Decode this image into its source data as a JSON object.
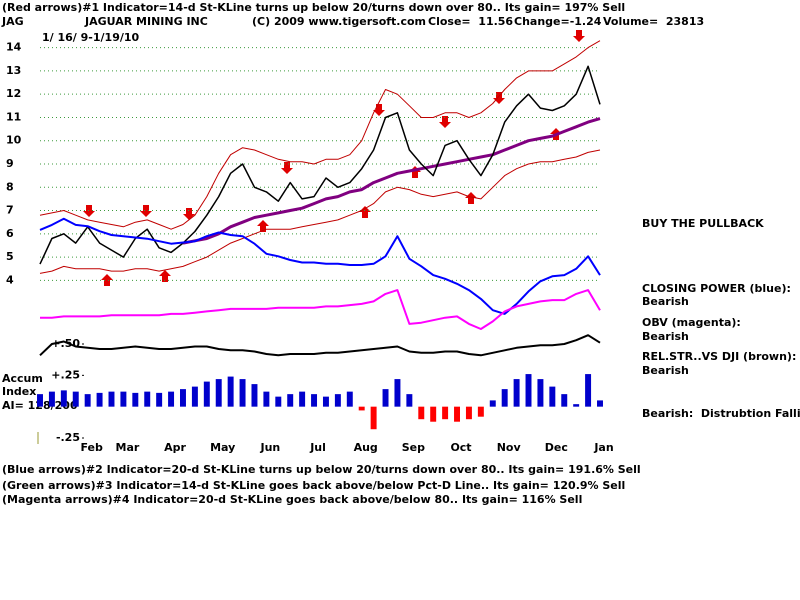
{
  "header": {
    "signal": "(Red arrows)#1 Indicator=14-d St-KLine turns up below 20/turns down over 80.. Its gain= 197% Sell",
    "ticker": "JAG",
    "company": "JAGUAR MINING INC",
    "copyright": "(C) 2009 www.tigersoft.com",
    "close": "Close=  11.56",
    "change": "Change=-1.24",
    "volume": "Volume=  23813",
    "dates": "1/ 16/ 9-1/19/10"
  },
  "chart_data": {
    "type": "line",
    "categories": [
      null,
      null,
      null,
      null,
      "Feb",
      null,
      null,
      "Mar",
      null,
      null,
      null,
      "Apr",
      null,
      null,
      null,
      "May",
      null,
      null,
      null,
      "Jun",
      null,
      null,
      null,
      "Jul",
      null,
      null,
      null,
      "Aug",
      null,
      null,
      null,
      "Sep",
      null,
      null,
      null,
      "Oct",
      null,
      null,
      null,
      "Nov",
      null,
      null,
      null,
      "Dec",
      null,
      null,
      null,
      "Jan"
    ],
    "ylim": [
      3.5,
      14.5
    ],
    "yticks": [
      4,
      5,
      6,
      7,
      8,
      9,
      10,
      11,
      12,
      13,
      14
    ],
    "y2lim": [
      -0.25,
      2.0
    ],
    "y2ticks": [
      {
        "value": 0.5,
        "label": "+.50"
      },
      {
        "value": 0.25,
        "label": "+.25"
      },
      {
        "value": -0.25,
        "label": "-.25"
      }
    ],
    "grid": true,
    "grid_color": "#3c9a3c",
    "series": [
      {
        "kind": "line",
        "color": "#c00000",
        "width": 1,
        "values": [
          6.8,
          6.9,
          7.0,
          6.8,
          6.6,
          6.5,
          6.4,
          6.3,
          6.5,
          6.6,
          6.4,
          6.2,
          6.4,
          6.8,
          7.6,
          8.6,
          9.4,
          9.7,
          9.6,
          9.4,
          9.2,
          9.1,
          9.1,
          9.0,
          9.2,
          9.2,
          9.4,
          10.0,
          11.2,
          12.2,
          12.0,
          11.5,
          11.0,
          11.0,
          11.2,
          11.2,
          11.0,
          11.2,
          11.6,
          12.2,
          12.7,
          13.0,
          13.0,
          13.0,
          13.3,
          13.6,
          14.0,
          14.3
        ]
      },
      {
        "kind": "line",
        "color": "#c00000",
        "width": 1,
        "values": [
          4.3,
          4.4,
          4.6,
          4.5,
          4.5,
          4.5,
          4.4,
          4.4,
          4.5,
          4.5,
          4.4,
          4.5,
          4.6,
          4.8,
          5.0,
          5.3,
          5.6,
          5.8,
          6.0,
          6.2,
          6.2,
          6.2,
          6.3,
          6.4,
          6.5,
          6.6,
          6.8,
          7.0,
          7.3,
          7.8,
          8.0,
          7.9,
          7.7,
          7.6,
          7.7,
          7.8,
          7.6,
          7.5,
          8.0,
          8.5,
          8.8,
          9.0,
          9.1,
          9.1,
          9.2,
          9.3,
          9.5,
          9.6
        ]
      },
      {
        "kind": "line",
        "color": "#800080",
        "width": 3,
        "values": [
          null,
          null,
          null,
          null,
          null,
          null,
          null,
          null,
          null,
          null,
          null,
          null,
          5.6,
          5.7,
          5.8,
          6.0,
          6.3,
          6.5,
          6.7,
          6.8,
          6.9,
          7.0,
          7.1,
          7.3,
          7.5,
          7.6,
          7.8,
          7.9,
          8.2,
          8.4,
          8.6,
          8.7,
          8.8,
          8.9,
          9.0,
          9.1,
          9.2,
          9.3,
          9.4,
          9.6,
          9.8,
          10.0,
          10.1,
          10.2,
          10.4,
          10.6,
          10.8,
          10.95
        ]
      },
      {
        "kind": "line",
        "color": "#000000",
        "width": 1.5,
        "values": [
          4.7,
          5.8,
          6.0,
          5.6,
          6.3,
          5.6,
          5.3,
          5.0,
          5.8,
          6.2,
          5.4,
          5.2,
          5.6,
          6.1,
          6.8,
          7.6,
          8.6,
          9.0,
          8.0,
          7.8,
          7.4,
          8.2,
          7.5,
          7.6,
          8.4,
          8.0,
          8.2,
          8.8,
          9.6,
          11.0,
          11.2,
          9.6,
          9.0,
          8.5,
          9.8,
          10.0,
          9.2,
          8.5,
          9.4,
          10.8,
          11.5,
          12.0,
          11.4,
          11.3,
          11.5,
          12.0,
          13.2,
          11.56
        ]
      },
      {
        "kind": "line",
        "axis": "y2",
        "color": "#0000ff",
        "width": 2,
        "values": [
          1.41,
          1.45,
          1.5,
          1.45,
          1.44,
          1.4,
          1.37,
          1.36,
          1.35,
          1.34,
          1.32,
          1.3,
          1.31,
          1.32,
          1.36,
          1.39,
          1.37,
          1.36,
          1.3,
          1.22,
          1.2,
          1.17,
          1.15,
          1.15,
          1.14,
          1.14,
          1.13,
          1.13,
          1.14,
          1.2,
          1.36,
          1.18,
          1.12,
          1.05,
          1.02,
          0.98,
          0.93,
          0.86,
          0.77,
          0.74,
          0.82,
          0.92,
          1.0,
          1.04,
          1.05,
          1.1,
          1.2,
          1.05
        ]
      },
      {
        "kind": "line",
        "axis": "y2",
        "color": "#ff00ff",
        "width": 2,
        "values": [
          0.71,
          0.71,
          0.72,
          0.72,
          0.72,
          0.72,
          0.73,
          0.73,
          0.73,
          0.73,
          0.73,
          0.74,
          0.74,
          0.75,
          0.76,
          0.77,
          0.78,
          0.78,
          0.78,
          0.78,
          0.79,
          0.79,
          0.79,
          0.79,
          0.8,
          0.8,
          0.81,
          0.82,
          0.84,
          0.9,
          0.93,
          0.66,
          0.67,
          0.69,
          0.71,
          0.72,
          0.66,
          0.62,
          0.68,
          0.76,
          0.8,
          0.82,
          0.84,
          0.85,
          0.85,
          0.9,
          0.93,
          0.77
        ]
      },
      {
        "kind": "line",
        "axis": "y2",
        "color": "#000000",
        "width": 2,
        "values": [
          0.41,
          0.5,
          0.52,
          0.48,
          0.47,
          0.46,
          0.46,
          0.47,
          0.48,
          0.47,
          0.46,
          0.46,
          0.47,
          0.48,
          0.48,
          0.46,
          0.45,
          0.45,
          0.44,
          0.42,
          0.41,
          0.42,
          0.42,
          0.42,
          0.43,
          0.43,
          0.44,
          0.45,
          0.46,
          0.47,
          0.48,
          0.44,
          0.43,
          0.43,
          0.44,
          0.44,
          0.42,
          0.41,
          0.43,
          0.45,
          0.47,
          0.48,
          0.49,
          0.49,
          0.5,
          0.53,
          0.57,
          0.51
        ]
      },
      {
        "kind": "bar",
        "axis": "y2",
        "color": "#0000cc",
        "negative_color": "#ff0000",
        "values": [
          0.1,
          0.12,
          0.13,
          0.12,
          0.1,
          0.11,
          0.12,
          0.12,
          0.11,
          0.12,
          0.11,
          0.12,
          0.14,
          0.16,
          0.2,
          0.22,
          0.24,
          0.22,
          0.18,
          0.12,
          0.08,
          0.1,
          0.12,
          0.1,
          0.08,
          0.1,
          0.12,
          -0.03,
          -0.18,
          0.14,
          0.22,
          0.1,
          -0.1,
          -0.12,
          -0.1,
          -0.12,
          -0.1,
          -0.08,
          0.05,
          0.14,
          0.22,
          0.26,
          0.22,
          0.16,
          0.1,
          0.02,
          0.26,
          0.05
        ]
      }
    ]
  },
  "accum": {
    "line1": "Accum",
    "line2": "Index",
    "line3": "AI= 128/200"
  },
  "right_panel": {
    "advice": "BUY THE PULLBACK",
    "cp_label": "CLOSING POWER (blue):",
    "cp_state": "Bearish",
    "obv_label": "OBV (magenta):",
    "obv_state": "Bearish",
    "rs_label": "REL.STR..VS DJI (brown):",
    "rs_state": "Bearish",
    "accum_state": "Bearish:  Distrubtion Falling."
  },
  "footer": [
    "(Blue arrows)#2 Indicator=20-d St-KLine turns up below 20/turns down over 80.. Its gain= 191.6% Sell",
    "(Green arrows)#3 Indicator=14-d St-KLine goes back above/below Pct-D Line.. Its gain= 120.9% Sell",
    "(Magenta arrows)#4 Indicator=20-d St-KLine goes back above/below 80.. Its gain= 116% Sell"
  ]
}
